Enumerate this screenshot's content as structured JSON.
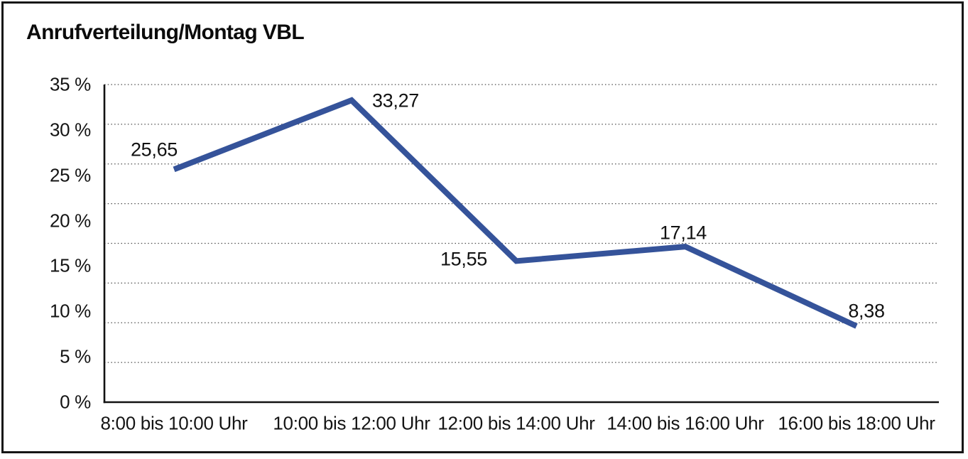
{
  "title": "Anrufverteilung/Montag VBL",
  "chart_data": {
    "type": "line",
    "title": "Anrufverteilung/Montag VBL",
    "categories": [
      "8:00 bis 10:00 Uhr",
      "10:00 bis 12:00 Uhr",
      "12:00 bis 14:00 Uhr",
      "14:00 bis 16:00 Uhr",
      "16:00 bis 18:00 Uhr"
    ],
    "values": [
      25.65,
      33.27,
      15.55,
      17.14,
      8.38
    ],
    "value_labels": [
      "25,65",
      "33,27",
      "15,55",
      "17,14",
      "8,38"
    ],
    "y_ticks": [
      "0 %",
      "5 %",
      "10 %",
      "15 %",
      "20 %",
      "25 %",
      "30 %",
      "35 %"
    ],
    "ylim": [
      0,
      35
    ],
    "y_tick_step": 5,
    "xlabel": "",
    "ylabel": "",
    "grid": "horizontal dotted",
    "legend_position": "none",
    "decimal_separator": ",",
    "line_color": "#35539a",
    "text_color": "#111111",
    "grid_color": "#4d4d4d",
    "axis_color": "#121212",
    "background_color": "#ffffff"
  }
}
